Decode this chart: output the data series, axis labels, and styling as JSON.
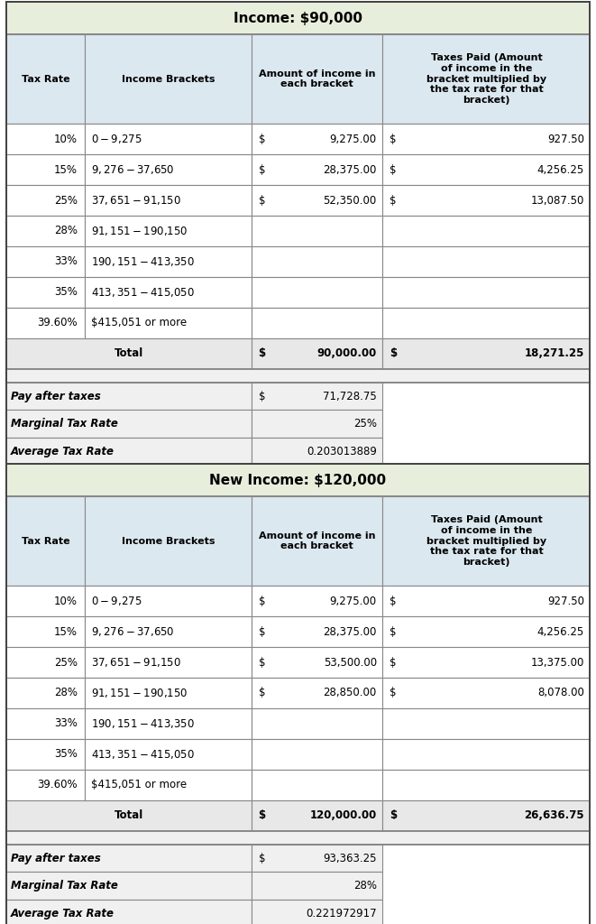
{
  "table1": {
    "title": "Income: $90,000",
    "headers": [
      "Tax Rate",
      "Income Brackets",
      "Amount of income in\neach bracket",
      "Taxes Paid (Amount\nof income in the\nbracket multiplied by\nthe tax rate for that\nbracket)"
    ],
    "rows": [
      [
        "10%",
        "$0 - $9,275",
        "$ 9,275.00",
        "927.50"
      ],
      [
        "15%",
        "$9,276 - $37,650",
        "$ 28,375.00",
        "4,256.25"
      ],
      [
        "25%",
        "$37,651 - $91,150",
        "$ 52,350.00",
        "13,087.50"
      ],
      [
        "28%",
        "$91,151 - $190,150",
        "",
        ""
      ],
      [
        "33%",
        "$190,151 - $413,350",
        "",
        ""
      ],
      [
        "35%",
        "$413,351 - $415,050",
        "",
        ""
      ],
      [
        "39.60%",
        "$415,051 or more",
        "",
        ""
      ]
    ],
    "total_col2": "$ 90,000.00",
    "total_col3": "18,271.25",
    "summary": [
      [
        "Pay after taxes",
        "$",
        "71,728.75"
      ],
      [
        "Marginal Tax Rate",
        "",
        "25%"
      ],
      [
        "Average Tax Rate",
        "",
        "0.203013889"
      ]
    ]
  },
  "table2": {
    "title": "New Income: $120,000",
    "headers": [
      "Tax Rate",
      "Income Brackets",
      "Amount of income in\neach bracket",
      "Taxes Paid (Amount\nof income in the\nbracket multiplied by\nthe tax rate for that\nbracket)"
    ],
    "rows": [
      [
        "10%",
        "$0 - $9,275",
        "$ 9,275.00",
        "927.50"
      ],
      [
        "15%",
        "$9,276 - $37,650",
        "$ 28,375.00",
        "4,256.25"
      ],
      [
        "25%",
        "$37,651 - $91,150",
        "$ 53,500.00",
        "13,375.00"
      ],
      [
        "28%",
        "$91,151 - $190,150",
        "$ 28,850.00",
        "8,078.00"
      ],
      [
        "33%",
        "$190,151 - $413,350",
        "",
        ""
      ],
      [
        "35%",
        "$413,351 - $415,050",
        "",
        ""
      ],
      [
        "39.60%",
        "$415,051 or more",
        "",
        ""
      ]
    ],
    "total_col2": "$ 120,000.00",
    "total_col3": "26,636.75",
    "summary": [
      [
        "Pay after taxes",
        "$",
        "93,363.25"
      ],
      [
        "Marginal Tax Rate",
        "",
        "28%"
      ],
      [
        "Average Tax Rate",
        "",
        "0.221972917"
      ]
    ]
  },
  "colors": {
    "title_bg": "#e8eedc",
    "header_bg": "#dce8f0",
    "data_bg": "#ffffff",
    "total_bg": "#e8e8e8",
    "gap_bg": "#f0f0f0",
    "summary_bg": "#f0f0f0",
    "border": "#888888"
  }
}
